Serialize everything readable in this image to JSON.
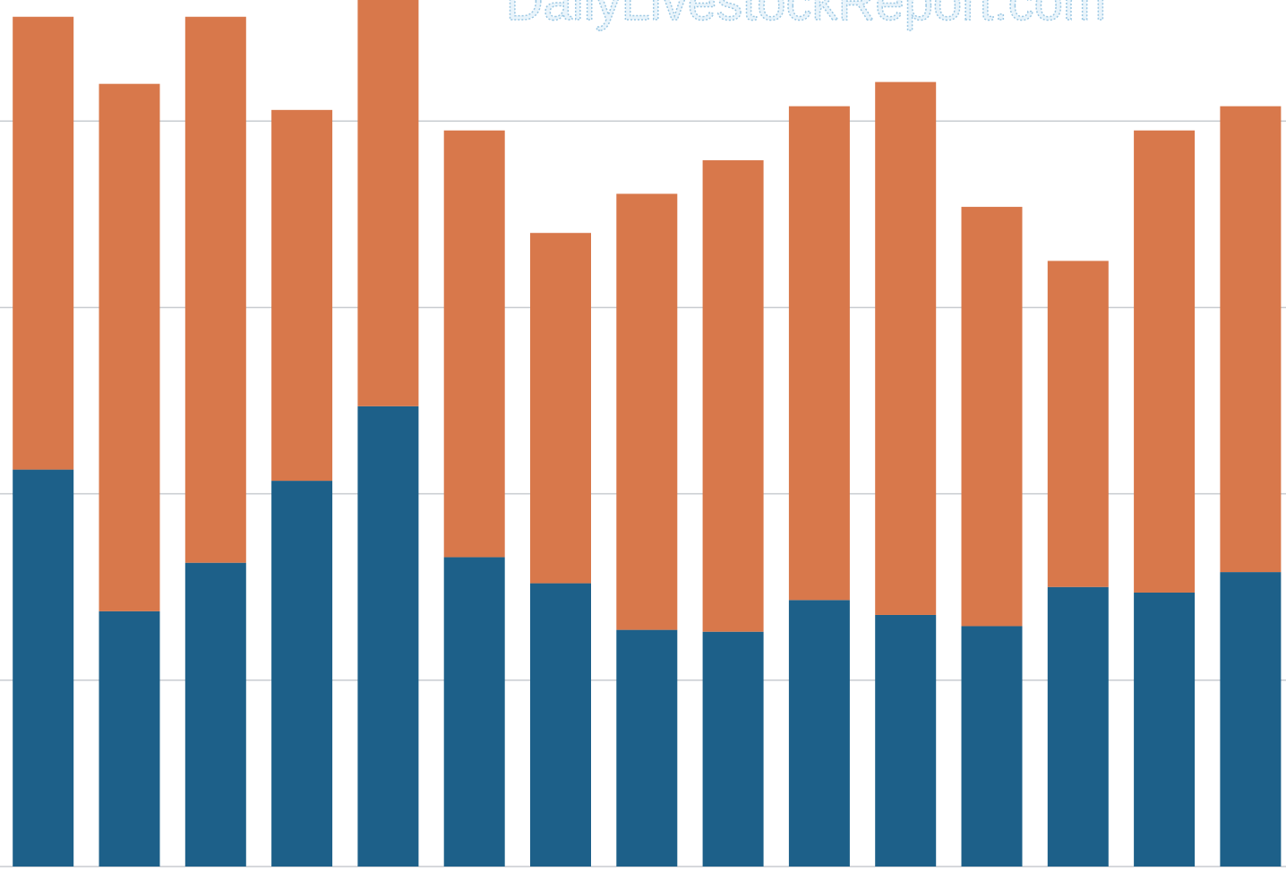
{
  "chart_data": {
    "type": "stacked_bar",
    "annotation": "DailyLivestockReport.com",
    "categories": [
      null,
      null,
      null,
      null,
      null,
      null,
      null,
      null,
      null,
      null,
      null,
      null,
      null,
      null,
      null
    ],
    "series": [
      {
        "color": "#1d6089",
        "values": [
          2.13,
          1.37,
          1.63,
          2.07,
          2.47,
          1.66,
          1.52,
          1.27,
          1.26,
          1.43,
          1.35,
          1.29,
          1.5,
          1.47,
          1.58
        ]
      },
      {
        "color": "#d8784b",
        "values": [
          2.43,
          2.83,
          2.93,
          1.99,
          2.2,
          2.29,
          1.88,
          2.34,
          2.53,
          2.65,
          2.86,
          2.25,
          1.75,
          2.48,
          2.5
        ]
      }
    ],
    "ylim": [
      0,
      4.65
    ],
    "yticks": [
      0,
      1,
      2,
      3,
      4
    ],
    "grid": true
  }
}
